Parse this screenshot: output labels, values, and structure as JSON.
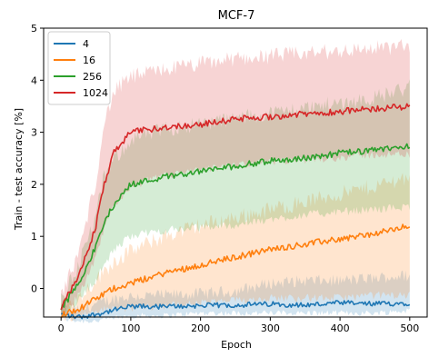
{
  "chart_data": {
    "type": "line",
    "title": "MCF-7",
    "xlabel": "Epoch",
    "ylabel": "Train - test accuracy [%]",
    "xlim": [
      -25,
      525
    ],
    "ylim": [
      -0.55,
      5.0
    ],
    "xticks": [
      0,
      100,
      200,
      300,
      400,
      500
    ],
    "yticks": [
      0,
      1,
      2,
      3,
      4,
      5
    ],
    "xtick_labels": [
      "0",
      "100",
      "200",
      "300",
      "400",
      "500"
    ],
    "ytick_labels": [
      "0",
      "1",
      "2",
      "3",
      "4",
      "5"
    ],
    "legend_position": "top-left",
    "grid": false,
    "series": [
      {
        "name": "4",
        "color": "#1f77b4",
        "x": [
          0,
          25,
          50,
          75,
          100,
          150,
          200,
          250,
          300,
          350,
          400,
          450,
          500
        ],
        "mean": [
          -0.5,
          -0.55,
          -0.5,
          -0.42,
          -0.35,
          -0.35,
          -0.33,
          -0.32,
          -0.3,
          -0.32,
          -0.28,
          -0.3,
          -0.28
        ],
        "lower": [
          -0.55,
          -0.6,
          -0.6,
          -0.55,
          -0.5,
          -0.5,
          -0.45,
          -0.45,
          -0.45,
          -0.45,
          -0.45,
          -0.45,
          -0.4
        ],
        "upper": [
          -0.45,
          -0.48,
          -0.35,
          -0.25,
          -0.2,
          -0.18,
          -0.15,
          -0.1,
          0.05,
          0.1,
          0.1,
          0.15,
          0.2
        ]
      },
      {
        "name": "16",
        "color": "#ff7f0e",
        "x": [
          0,
          25,
          50,
          75,
          100,
          150,
          200,
          250,
          300,
          350,
          400,
          450,
          500
        ],
        "mean": [
          -0.5,
          -0.4,
          -0.2,
          0.0,
          0.1,
          0.3,
          0.45,
          0.6,
          0.75,
          0.85,
          0.95,
          1.05,
          1.2
        ],
        "lower": [
          -0.55,
          -0.5,
          -0.4,
          -0.35,
          -0.35,
          -0.3,
          -0.25,
          -0.2,
          -0.15,
          -0.15,
          -0.15,
          -0.1,
          -0.1
        ],
        "upper": [
          -0.4,
          -0.25,
          0.1,
          0.45,
          0.65,
          0.95,
          1.15,
          1.3,
          1.45,
          1.6,
          1.75,
          1.9,
          2.1
        ]
      },
      {
        "name": "256",
        "color": "#2ca02c",
        "x": [
          0,
          25,
          50,
          60,
          75,
          100,
          150,
          200,
          250,
          300,
          350,
          400,
          450,
          500
        ],
        "mean": [
          -0.4,
          0.1,
          0.8,
          1.2,
          1.6,
          2.0,
          2.15,
          2.25,
          2.35,
          2.45,
          2.5,
          2.6,
          2.65,
          2.75
        ],
        "lower": [
          -0.5,
          -0.2,
          0.2,
          0.45,
          0.75,
          1.05,
          1.15,
          1.2,
          1.25,
          1.35,
          1.45,
          1.5,
          1.55,
          1.6
        ],
        "upper": [
          -0.3,
          0.4,
          1.3,
          2.0,
          2.4,
          2.8,
          3.0,
          3.1,
          3.2,
          3.3,
          3.4,
          3.5,
          3.6,
          3.8
        ]
      },
      {
        "name": "1024",
        "color": "#d62728",
        "x": [
          0,
          25,
          50,
          60,
          75,
          100,
          150,
          200,
          250,
          300,
          350,
          400,
          450,
          500
        ],
        "mean": [
          -0.35,
          0.2,
          1.2,
          1.9,
          2.6,
          3.0,
          3.1,
          3.15,
          3.25,
          3.3,
          3.35,
          3.4,
          3.45,
          3.5
        ],
        "lower": [
          -0.5,
          -0.1,
          0.6,
          1.1,
          1.6,
          2.0,
          2.2,
          2.3,
          2.4,
          2.45,
          2.5,
          2.55,
          2.6,
          2.6
        ],
        "upper": [
          -0.2,
          0.6,
          2.0,
          3.0,
          3.7,
          4.0,
          4.15,
          4.25,
          4.35,
          4.4,
          4.45,
          4.5,
          4.55,
          4.6
        ]
      }
    ]
  }
}
